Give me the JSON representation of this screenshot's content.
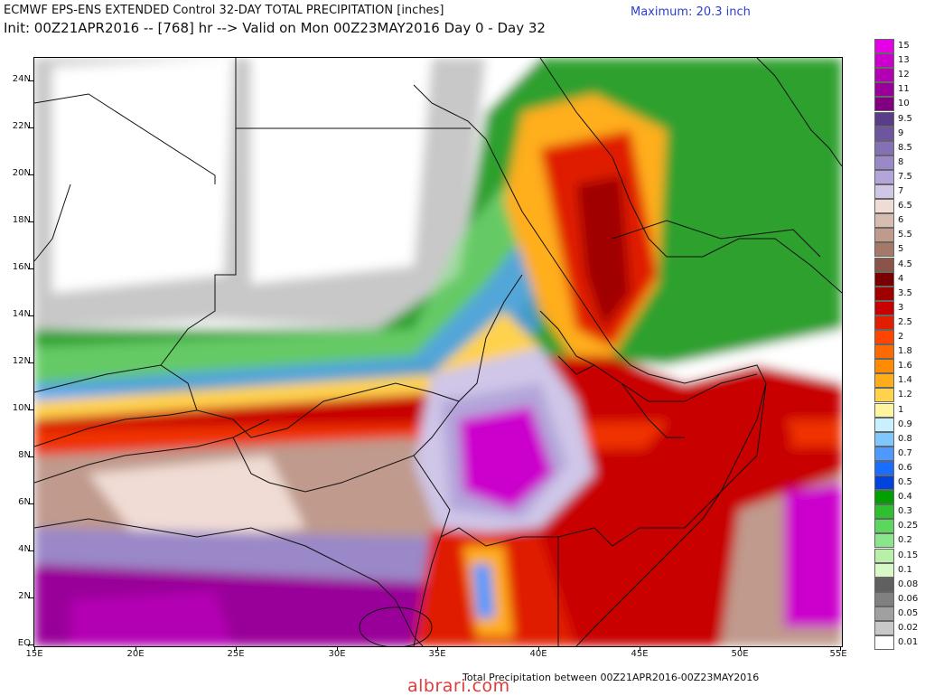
{
  "header": {
    "title_line1": "ECMWF EPS-ENS EXTENDED Control 32-DAY TOTAL PRECIPITATION [inches]",
    "title_line2": "Init: 00Z21APR2016 -- [768] hr --> Valid on Mon 00Z23MAY2016  Day 0 - Day 32",
    "maximum": "Maximum: 20.3 inch"
  },
  "footer": {
    "caption": "Total Precipitation between 00Z21APR2016-00Z23MAY2016",
    "watermark": "albrari.com"
  },
  "map": {
    "region": "East Africa",
    "lon_range": [
      15,
      55
    ],
    "lat_range": [
      0,
      25
    ],
    "lat_labels": [
      "24N",
      "22N",
      "20N",
      "18N",
      "16N",
      "14N",
      "12N",
      "10N",
      "8N",
      "6N",
      "4N",
      "2N",
      "EQ"
    ],
    "lat_values": [
      24,
      22,
      20,
      18,
      16,
      14,
      12,
      10,
      8,
      6,
      4,
      2,
      0
    ],
    "lon_labels": [
      "15E",
      "20E",
      "25E",
      "30E",
      "35E",
      "40E",
      "45E",
      "50E",
      "55E"
    ],
    "lon_values": [
      15,
      20,
      25,
      30,
      35,
      40,
      45,
      50,
      55
    ]
  },
  "legend": {
    "labels": [
      "15",
      "13",
      "12",
      "11",
      "10",
      "9.5",
      "9",
      "8.5",
      "8",
      "7.5",
      "7",
      "6.5",
      "6",
      "5.5",
      "5",
      "4.5",
      "4",
      "3.5",
      "3",
      "2.5",
      "2",
      "1.8",
      "1.6",
      "1.4",
      "1.2",
      "1",
      "0.9",
      "0.8",
      "0.7",
      "0.6",
      "0.5",
      "0.4",
      "0.3",
      "0.25",
      "0.2",
      "0.15",
      "0.1",
      "0.08",
      "0.06",
      "0.05",
      "0.02",
      "0.01"
    ],
    "colors": [
      "#e600e6",
      "#cc00cc",
      "#b300b3",
      "#990099",
      "#800080",
      "#5a3d8a",
      "#6e55a0",
      "#8470b5",
      "#9a88c8",
      "#b3a5d9",
      "#cfc6e8",
      "#f0dcd4",
      "#d8bcb0",
      "#c09a8c",
      "#a67868",
      "#8a5548",
      "#7a0000",
      "#a00000",
      "#c80000",
      "#e01e00",
      "#ff4500",
      "#ff6a00",
      "#ff8c00",
      "#ffae1a",
      "#ffd24d",
      "#fff5a0",
      "#c8f0ff",
      "#7fc8ff",
      "#4d99ff",
      "#1a6eff",
      "#0044dd",
      "#00a000",
      "#2ec02e",
      "#5cd65c",
      "#8ae68a",
      "#b8f0a8",
      "#d8f8c8",
      "#606060",
      "#808080",
      "#a0a0a0",
      "#c8c8c8",
      "#ffffff"
    ]
  }
}
